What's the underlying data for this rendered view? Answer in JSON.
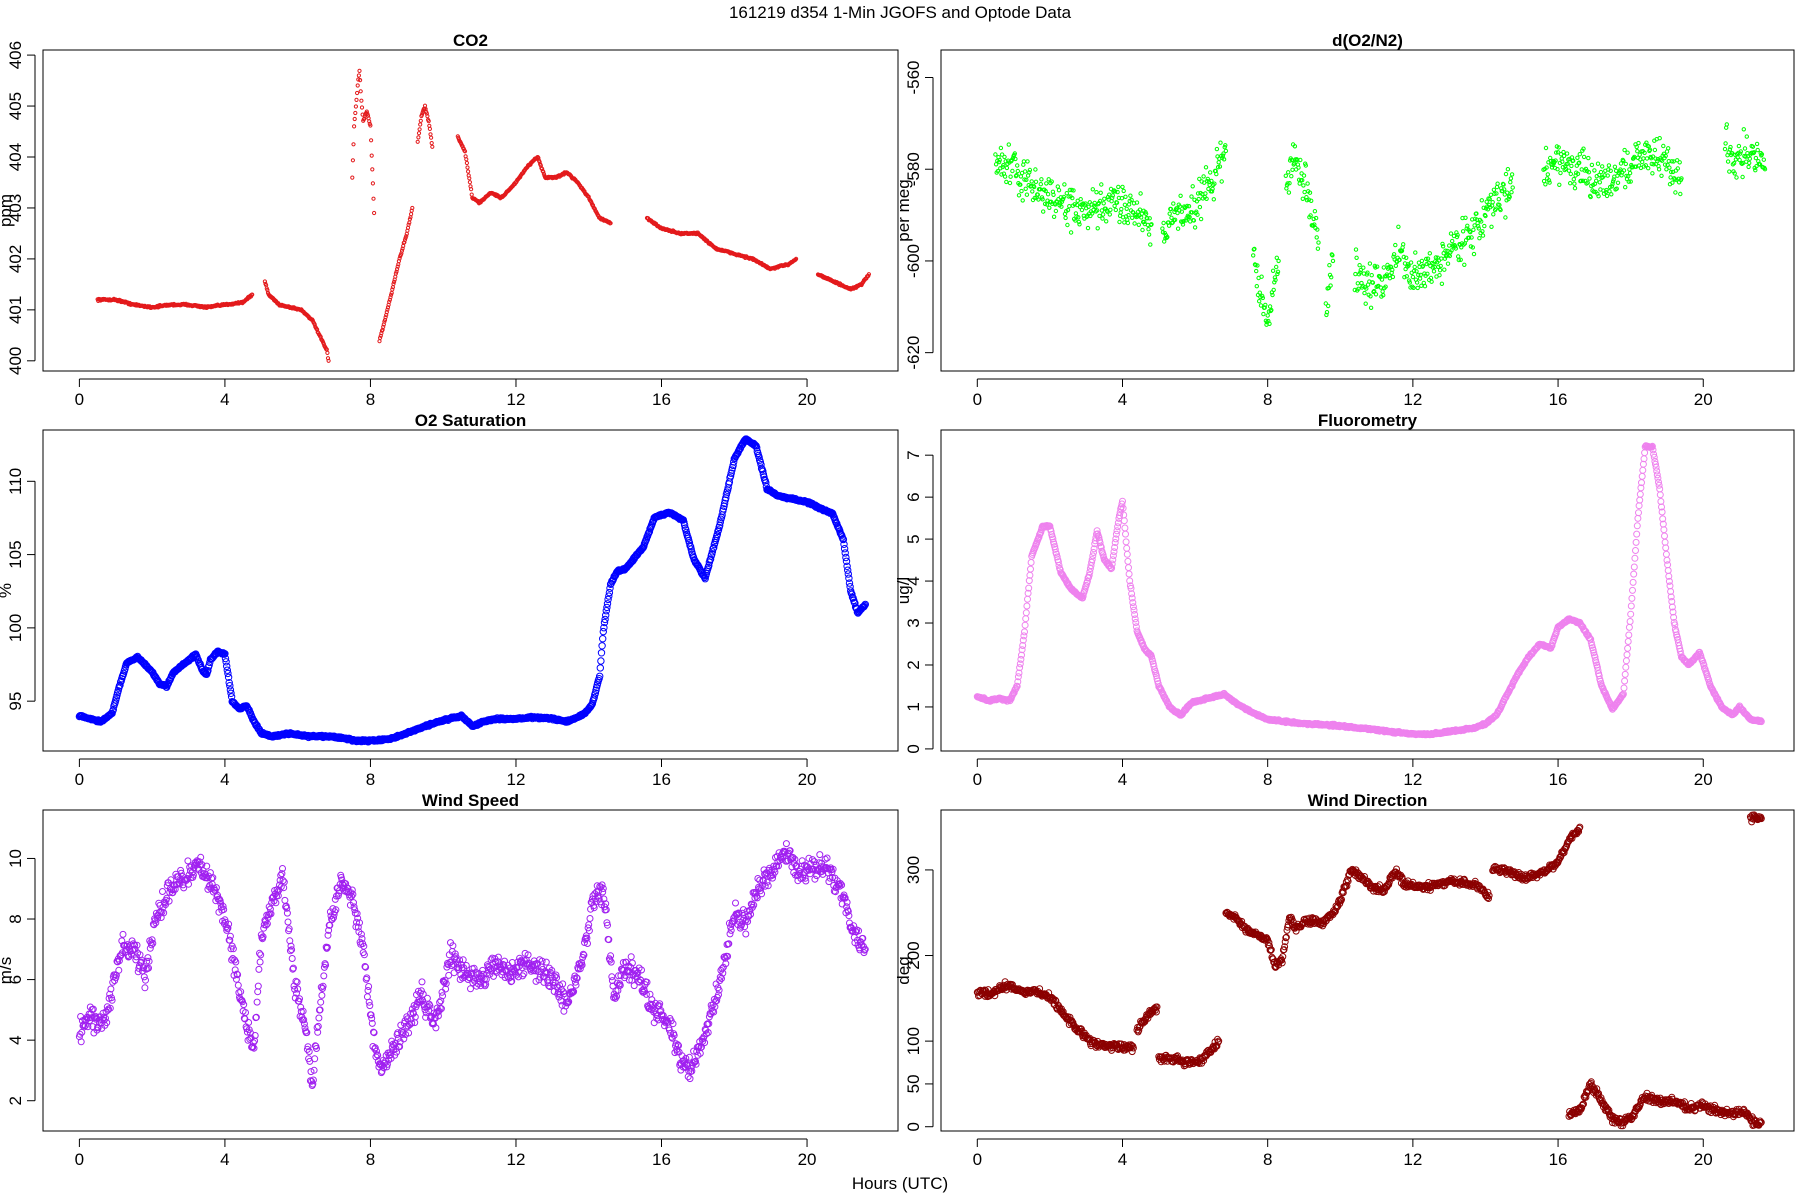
{
  "figure": {
    "title": "161219   d354   1-Min  JGOFS and Optode Data",
    "xlabel": "Hours (UTC)"
  },
  "chart_data": [
    {
      "id": "co2",
      "type": "scatter",
      "title": "CO2",
      "xlabel": "",
      "ylabel": "ppm",
      "xlim": [
        -1,
        22.5
      ],
      "ylim": [
        399.8,
        406.1
      ],
      "xticks": [
        0,
        4,
        8,
        12,
        16,
        20
      ],
      "yticks": [
        400,
        401,
        402,
        403,
        404,
        405,
        406
      ],
      "color": "#e31a1c",
      "marker_size": 1.6,
      "segments": [
        {
          "x": [
            0.5,
            1.0,
            1.5,
            2.0,
            2.5,
            3.0,
            3.5,
            4.0,
            4.5,
            4.75
          ],
          "y": [
            401.2,
            401.2,
            401.1,
            401.05,
            401.1,
            401.1,
            401.05,
            401.1,
            401.15,
            401.3
          ]
        },
        {
          "x": [
            5.1,
            5.2,
            5.5,
            5.8,
            6.1,
            6.4,
            6.6,
            6.8,
            6.85
          ],
          "y": [
            401.55,
            401.3,
            401.1,
            401.05,
            401.0,
            400.8,
            400.5,
            400.2,
            400.0
          ]
        },
        {
          "x": [
            7.5,
            7.55,
            7.65,
            7.7,
            7.75,
            7.8,
            7.9,
            8.0,
            8.1
          ],
          "y": [
            403.6,
            404.6,
            405.4,
            405.7,
            405.1,
            404.7,
            404.9,
            404.6,
            402.9
          ]
        },
        {
          "x": [
            8.25,
            8.4,
            8.6,
            8.8,
            9.0,
            9.15
          ],
          "y": [
            400.4,
            400.8,
            401.4,
            402.0,
            402.5,
            403.0
          ]
        },
        {
          "x": [
            9.3,
            9.4,
            9.5,
            9.6,
            9.7
          ],
          "y": [
            404.3,
            404.8,
            405.0,
            404.7,
            404.2
          ]
        },
        {
          "x": [
            10.4,
            10.6,
            10.8,
            11.0,
            11.3,
            11.6,
            12.0,
            12.3,
            12.6,
            12.8,
            13.1,
            13.4,
            13.7,
            14.0,
            14.3,
            14.6
          ],
          "y": [
            404.4,
            404.1,
            403.2,
            403.1,
            403.3,
            403.2,
            403.5,
            403.8,
            404.0,
            403.6,
            403.6,
            403.7,
            403.5,
            403.2,
            402.8,
            402.7
          ]
        },
        {
          "x": [
            15.6,
            16.0,
            16.5,
            17.0,
            17.5,
            18.0,
            18.5,
            19.0,
            19.5,
            19.7
          ],
          "y": [
            402.8,
            402.6,
            402.5,
            402.5,
            402.2,
            402.1,
            402.0,
            401.8,
            401.9,
            402.0
          ]
        },
        {
          "x": [
            20.3,
            20.6,
            20.9,
            21.2,
            21.5,
            21.7
          ],
          "y": [
            401.7,
            401.6,
            401.5,
            401.4,
            401.5,
            401.7
          ]
        }
      ]
    },
    {
      "id": "do2n2",
      "type": "scatter",
      "title": "d(O2/N2)",
      "xlabel": "",
      "ylabel": "per meg",
      "xlim": [
        -1,
        22.5
      ],
      "ylim": [
        -624,
        -554
      ],
      "xticks": [
        0,
        4,
        8,
        12,
        16,
        20
      ],
      "yticks": [
        -620,
        -600,
        -580,
        -560
      ],
      "color": "#00ff00",
      "marker_size": 1.7,
      "noise": 5,
      "segments": [
        {
          "x": [
            0.5,
            1.0,
            1.5,
            2.0,
            2.5,
            3.0,
            3.5,
            4.0,
            4.5,
            4.8
          ],
          "y": [
            -578,
            -580,
            -584,
            -586,
            -588,
            -590,
            -588,
            -587,
            -590,
            -592
          ]
        },
        {
          "x": [
            5.1,
            5.5,
            6.0,
            6.5,
            6.85
          ],
          "y": [
            -593,
            -590,
            -588,
            -582,
            -576
          ]
        },
        {
          "x": [
            7.6,
            7.8,
            8.0,
            8.2,
            8.3
          ],
          "y": [
            -600,
            -606,
            -614,
            -604,
            -600
          ]
        },
        {
          "x": [
            8.5,
            8.7,
            8.9,
            9.2,
            9.4
          ],
          "y": [
            -584,
            -578,
            -580,
            -588,
            -596
          ]
        },
        {
          "x": [
            9.6,
            9.7,
            9.8
          ],
          "y": [
            -612,
            -604,
            -600
          ]
        },
        {
          "x": [
            10.4,
            10.8,
            11.2,
            11.6,
            12.0,
            12.4,
            12.8,
            13.2,
            13.6,
            14.0,
            14.4,
            14.75
          ],
          "y": [
            -602,
            -606,
            -604,
            -598,
            -604,
            -602,
            -600,
            -596,
            -594,
            -590,
            -586,
            -584
          ]
        },
        {
          "x": [
            15.6,
            16.0,
            16.5,
            17.0,
            17.5,
            18.0,
            18.5,
            19.0,
            19.4
          ],
          "y": [
            -580,
            -578,
            -580,
            -583,
            -582,
            -579,
            -576,
            -579,
            -582
          ]
        },
        {
          "x": [
            20.6,
            20.9,
            21.2,
            21.5,
            21.7
          ],
          "y": [
            -574,
            -578,
            -576,
            -578,
            -580
          ]
        }
      ]
    },
    {
      "id": "o2sat",
      "type": "scatter",
      "title": "O2 Saturation",
      "xlabel": "",
      "ylabel": "%",
      "xlim": [
        -1,
        22.5
      ],
      "ylim": [
        91.6,
        113.5
      ],
      "xticks": [
        0,
        4,
        8,
        12,
        16,
        20
      ],
      "yticks": [
        95,
        100,
        105,
        110
      ],
      "color": "#0000ff",
      "marker_size": 3.2,
      "segments": [
        {
          "x": [
            0,
            0.3,
            0.6,
            0.9,
            1.1,
            1.3,
            1.6,
            2.0,
            2.2,
            2.4,
            2.6,
            3.0,
            3.2,
            3.4,
            3.5,
            3.6,
            3.8,
            4.0,
            4.2,
            4.4,
            4.6,
            4.8,
            5.0,
            5.3,
            5.8,
            6.3,
            6.8,
            7.2,
            7.6,
            8.0,
            8.5,
            9.0,
            9.5,
            10.0,
            10.5,
            10.8,
            11.1,
            11.5,
            12.0,
            12.5,
            13.0,
            13.4,
            13.7,
            13.9,
            14.1,
            14.3,
            14.4,
            14.6,
            14.8,
            15.0,
            15.5,
            15.8,
            16.2,
            16.6,
            16.9,
            17.2,
            17.6,
            18.0,
            18.3,
            18.6,
            18.9,
            19.2,
            19.6,
            20.0,
            20.4,
            20.7,
            21.0,
            21.2,
            21.4,
            21.6
          ],
          "y": [
            94.0,
            93.8,
            93.6,
            94.2,
            96.0,
            97.6,
            98.0,
            97.0,
            96.2,
            96.0,
            97.0,
            97.8,
            98.2,
            97.0,
            96.8,
            97.8,
            98.4,
            98.2,
            95.0,
            94.5,
            94.7,
            93.6,
            92.8,
            92.6,
            92.8,
            92.6,
            92.6,
            92.5,
            92.3,
            92.3,
            92.4,
            92.8,
            93.3,
            93.7,
            94.0,
            93.3,
            93.6,
            93.8,
            93.8,
            93.9,
            93.8,
            93.6,
            93.9,
            94.2,
            94.8,
            96.7,
            99.8,
            103.0,
            103.9,
            104.0,
            105.5,
            107.5,
            107.9,
            107.3,
            104.6,
            103.4,
            107.0,
            111.5,
            112.9,
            112.4,
            109.5,
            109.0,
            108.8,
            108.6,
            108.1,
            107.8,
            106.0,
            102.5,
            101.0,
            101.6
          ]
        }
      ]
    },
    {
      "id": "fluor",
      "type": "scatter",
      "title": "Fluorometry",
      "xlabel": "",
      "ylabel": "ug/l",
      "xlim": [
        -1,
        22.5
      ],
      "ylim": [
        -0.05,
        7.6
      ],
      "xticks": [
        0,
        4,
        8,
        12,
        16,
        20
      ],
      "yticks": [
        0,
        1,
        2,
        3,
        4,
        5,
        6,
        7
      ],
      "color": "#ee82ee",
      "marker_size": 3.0,
      "segments": [
        {
          "x": [
            0,
            0.3,
            0.6,
            0.9,
            1.1,
            1.3,
            1.5,
            1.8,
            2.0,
            2.3,
            2.6,
            2.9,
            3.1,
            3.3,
            3.5,
            3.7,
            3.9,
            4.0,
            4.2,
            4.4,
            4.6,
            4.8,
            5.0,
            5.3,
            5.6,
            5.9,
            6.3,
            6.8,
            7.2,
            7.6,
            8.0,
            8.5,
            9.0,
            9.5,
            10.0,
            10.5,
            11.0,
            11.5,
            12.0,
            12.5,
            12.9,
            13.3,
            13.7,
            14.0,
            14.3,
            14.6,
            14.9,
            15.2,
            15.5,
            15.8,
            16.0,
            16.3,
            16.6,
            16.9,
            17.2,
            17.5,
            17.8,
            18.0,
            18.2,
            18.4,
            18.6,
            18.8,
            19.0,
            19.2,
            19.4,
            19.6,
            19.9,
            20.2,
            20.5,
            20.8,
            21.0,
            21.3,
            21.6
          ],
          "y": [
            1.25,
            1.15,
            1.2,
            1.15,
            1.5,
            2.8,
            4.6,
            5.3,
            5.3,
            4.2,
            3.8,
            3.6,
            4.2,
            5.2,
            4.5,
            4.3,
            5.5,
            5.9,
            4.0,
            2.8,
            2.4,
            2.2,
            1.5,
            1.0,
            0.8,
            1.1,
            1.2,
            1.3,
            1.05,
            0.85,
            0.7,
            0.65,
            0.6,
            0.58,
            0.55,
            0.5,
            0.45,
            0.4,
            0.35,
            0.35,
            0.4,
            0.45,
            0.5,
            0.6,
            0.8,
            1.3,
            1.8,
            2.2,
            2.5,
            2.4,
            2.9,
            3.1,
            3.0,
            2.6,
            1.5,
            0.95,
            1.3,
            3.2,
            5.5,
            7.2,
            7.2,
            6.2,
            4.5,
            3.0,
            2.2,
            2.0,
            2.3,
            1.5,
            1.0,
            0.8,
            1.0,
            0.7,
            0.65
          ]
        }
      ]
    },
    {
      "id": "windspeed",
      "type": "scatter",
      "title": "Wind Speed",
      "xlabel": "",
      "ylabel": "m/s",
      "xlim": [
        -1,
        22.5
      ],
      "ylim": [
        1.0,
        11.6
      ],
      "xticks": [
        0,
        4,
        8,
        12,
        16,
        20
      ],
      "yticks": [
        2,
        4,
        6,
        8,
        10
      ],
      "color": "#a020f0",
      "marker_size": 3.0,
      "noise": 0.45,
      "segments": [
        {
          "x": [
            0,
            0.3,
            0.6,
            0.9,
            1.2,
            1.5,
            1.8,
            2.1,
            2.4,
            2.7,
            3.0,
            3.3,
            3.6,
            3.9,
            4.2,
            4.5,
            4.8,
            5.0,
            5.3,
            5.6,
            5.9,
            6.2,
            6.4,
            6.6,
            6.9,
            7.2,
            7.5,
            7.8,
            8.1,
            8.3,
            8.6,
            9.0,
            9.4,
            9.8,
            10.2,
            10.6,
            11.0,
            11.4,
            11.8,
            12.2,
            12.6,
            13.0,
            13.4,
            13.8,
            14.1,
            14.4,
            14.7,
            15.0,
            15.4,
            15.8,
            16.2,
            16.5,
            16.8,
            17.2,
            17.6,
            18.0,
            18.3,
            18.6,
            19.0,
            19.4,
            19.8,
            20.2,
            20.6,
            21.0,
            21.3,
            21.6
          ],
          "y": [
            4.3,
            4.8,
            4.5,
            5.5,
            7.2,
            7.0,
            6.0,
            8.0,
            8.8,
            9.2,
            9.5,
            9.8,
            9.2,
            8.5,
            7.0,
            5.0,
            3.5,
            7.5,
            8.5,
            9.5,
            6.0,
            4.5,
            2.5,
            5.0,
            8.0,
            9.2,
            8.8,
            7.0,
            3.8,
            3.0,
            3.6,
            4.5,
            5.5,
            4.5,
            6.8,
            6.3,
            6.0,
            6.5,
            6.2,
            6.6,
            6.3,
            6.0,
            5.2,
            6.5,
            8.5,
            9.0,
            5.5,
            6.5,
            6.0,
            5.0,
            4.5,
            3.5,
            3.0,
            4.2,
            5.8,
            8.2,
            7.8,
            8.8,
            9.5,
            10.2,
            9.5,
            9.8,
            9.6,
            8.8,
            7.5,
            7.0
          ]
        }
      ]
    },
    {
      "id": "winddir",
      "type": "scatter",
      "title": "Wind Direction",
      "xlabel": "",
      "ylabel": "deg",
      "xlim": [
        -1,
        22.5
      ],
      "ylim": [
        -5,
        370
      ],
      "xticks": [
        0,
        4,
        8,
        12,
        16,
        20
      ],
      "yticks": [
        0,
        50,
        100,
        200,
        300
      ],
      "color": "#8b0000",
      "marker_size": 3.0,
      "noise": 5,
      "segments": [
        {
          "x": [
            0,
            0.4,
            0.8,
            1.2,
            1.6,
            2.0,
            2.4,
            2.8,
            3.2,
            3.6,
            4.0,
            4.3
          ],
          "y": [
            158,
            155,
            165,
            158,
            158,
            152,
            130,
            112,
            98,
            95,
            93,
            92
          ]
        },
        {
          "x": [
            4.4,
            4.6,
            4.8,
            4.95
          ],
          "y": [
            112,
            125,
            135,
            140
          ]
        },
        {
          "x": [
            5.0,
            5.4,
            5.8,
            6.2,
            6.5,
            6.65
          ],
          "y": [
            80,
            79,
            75,
            78,
            92,
            100
          ]
        },
        {
          "x": [
            6.85,
            7.0,
            7.2,
            7.5,
            7.8,
            8.0,
            8.2,
            8.4,
            8.6,
            8.8,
            9.0,
            9.2,
            9.5,
            9.8,
            10.0,
            10.3,
            10.6,
            10.9,
            11.2,
            11.5,
            11.8,
            12.2,
            12.6,
            13.0,
            13.4,
            13.8,
            14.1
          ],
          "y": [
            250,
            248,
            240,
            228,
            222,
            218,
            188,
            195,
            245,
            230,
            240,
            240,
            238,
            250,
            265,
            300,
            290,
            280,
            275,
            300,
            282,
            280,
            282,
            285,
            286,
            280,
            270
          ]
        },
        {
          "x": [
            14.2,
            14.5,
            14.8,
            15.1,
            15.4,
            15.7,
            16.0,
            16.3,
            16.6
          ],
          "y": [
            300,
            300,
            295,
            290,
            295,
            300,
            310,
            335,
            350
          ]
        },
        {
          "x": [
            16.3,
            16.6,
            16.9,
            17.2,
            17.5,
            17.8,
            18.0,
            18.4,
            18.8,
            19.2,
            19.6,
            20.0,
            20.4,
            20.8,
            21.1,
            21.4,
            21.6
          ],
          "y": [
            15,
            20,
            50,
            30,
            10,
            5,
            10,
            35,
            30,
            30,
            22,
            25,
            18,
            15,
            18,
            5,
            5
          ]
        },
        {
          "x": [
            21.3,
            21.5,
            21.6
          ],
          "y": [
            360,
            361,
            360
          ]
        }
      ]
    }
  ]
}
